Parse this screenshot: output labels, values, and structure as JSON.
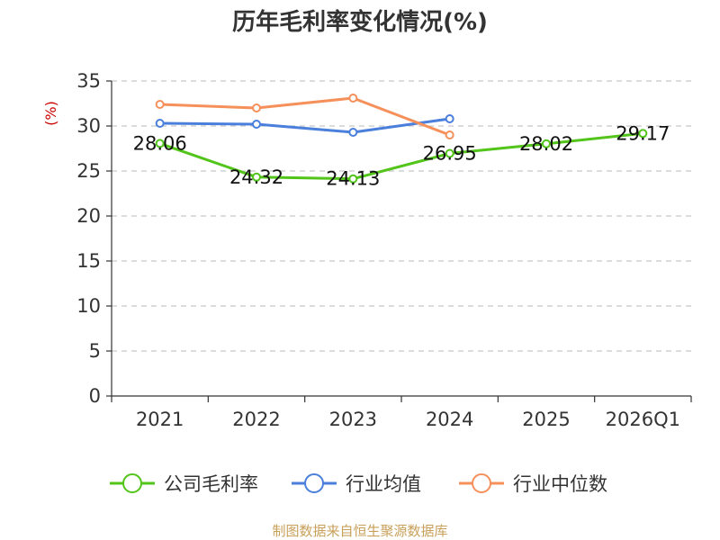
{
  "chart_data": {
    "type": "line",
    "title": "历年毛利率变化情况(%)",
    "ylabel": "(%)",
    "ylim": [
      0,
      35
    ],
    "yticks": [
      0,
      5,
      10,
      15,
      20,
      25,
      30,
      35
    ],
    "categories": [
      "2021",
      "2022",
      "2023",
      "2024",
      "2025",
      "2026Q1"
    ],
    "grid": true,
    "legend_position": "bottom",
    "series": [
      {
        "name": "公司毛利率",
        "color": "#52c41a",
        "values": [
          28.06,
          24.32,
          24.13,
          26.95,
          28.02,
          29.17
        ],
        "labels": [
          "28.06",
          "24.32",
          "24.13",
          "26.95",
          "28.02",
          "29.17"
        ]
      },
      {
        "name": "行业均值",
        "color": "#4a7fdc",
        "values": [
          30.3,
          30.2,
          29.3,
          30.8,
          null,
          null
        ]
      },
      {
        "name": "行业中位数",
        "color": "#f5905b",
        "values": [
          32.4,
          32.0,
          33.1,
          29.0,
          null,
          null
        ]
      }
    ],
    "source": "制图数据来自恒生聚源数据库"
  }
}
